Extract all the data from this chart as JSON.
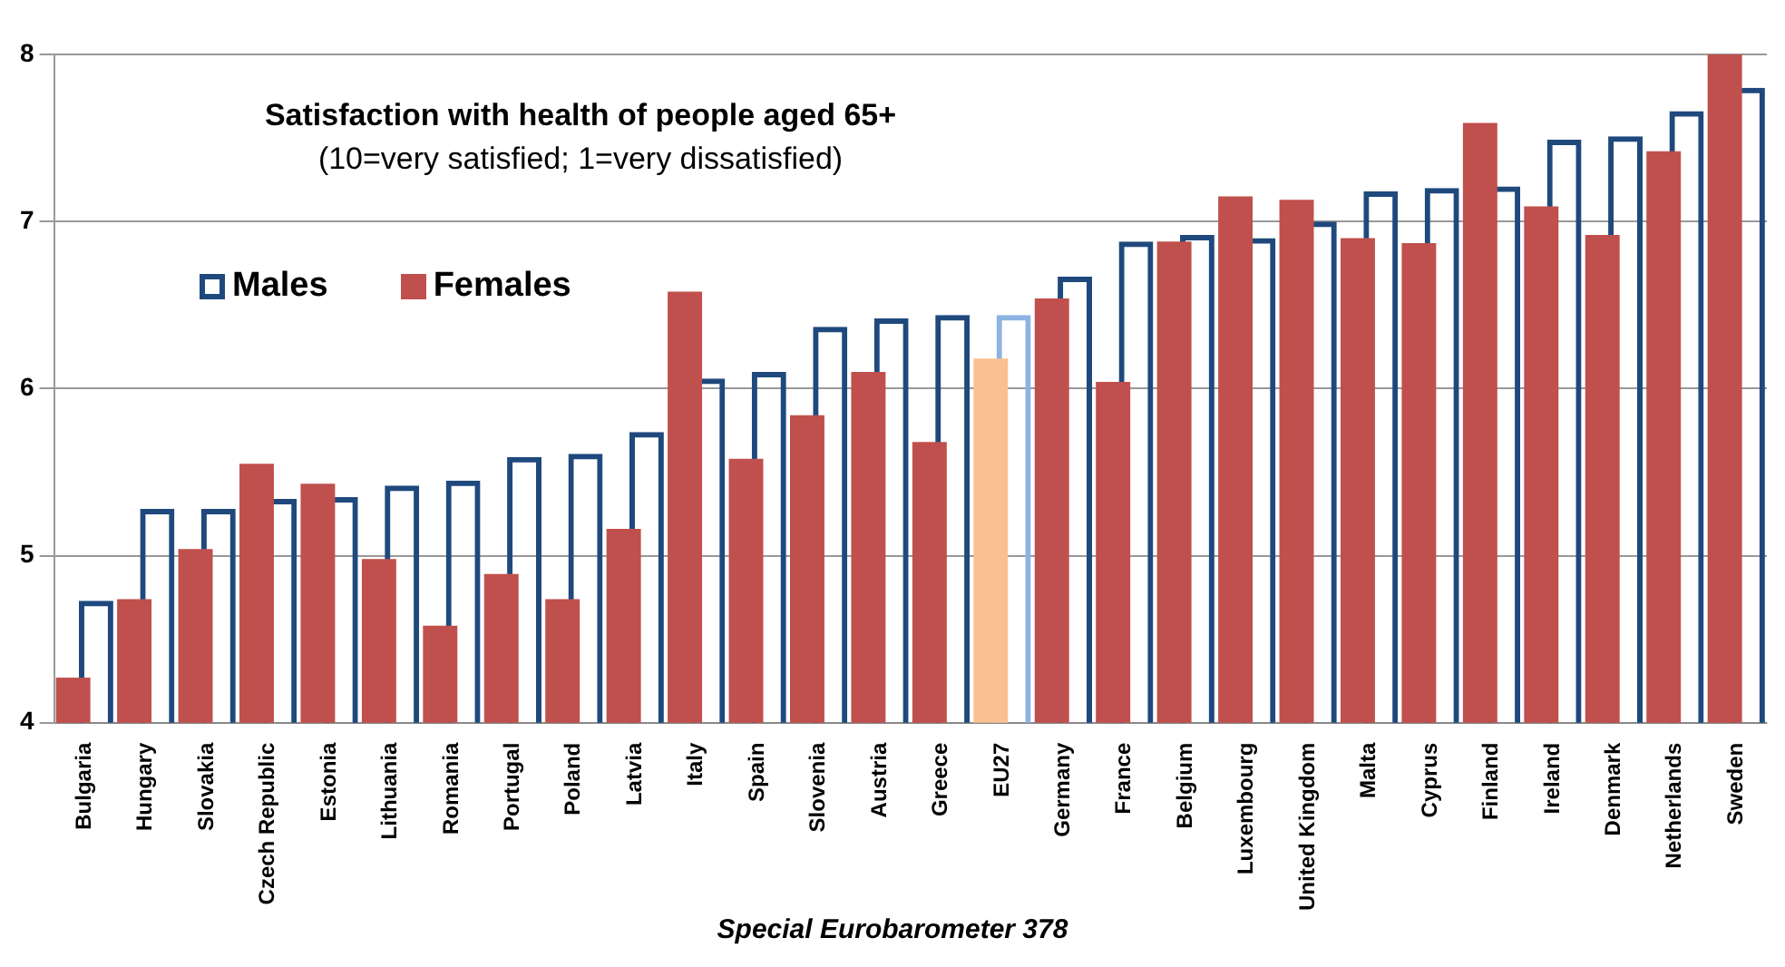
{
  "chart_data": {
    "type": "bar",
    "title": "Satisfaction with health of people aged 65+",
    "subtitle": "(10=very satisfied; 1=very dissatisfied)",
    "categories": [
      "Bulgaria",
      "Hungary",
      "Slovakia",
      "Czech Republic",
      "Estonia",
      "Lithuania",
      "Romania",
      "Portugal",
      "Poland",
      "Latvia",
      "Italy",
      "Spain",
      "Slovenia",
      "Austria",
      "Greece",
      "EU27",
      "Germany",
      "France",
      "Belgium",
      "Luxembourg",
      "United Kingdom",
      "Malta",
      "Cyprus",
      "Finland",
      "Ireland",
      "Denmark",
      "Netherlands",
      "Sweden"
    ],
    "series": [
      {
        "name": "Males",
        "color": "#1f497d",
        "colors": [
          "#1f497d",
          "#1f497d",
          "#1f497d",
          "#1f497d",
          "#1f497d",
          "#1f497d",
          "#1f497d",
          "#1f497d",
          "#1f497d",
          "#1f497d",
          "#1f497d",
          "#1f497d",
          "#1f497d",
          "#1f497d",
          "#1f497d",
          "#8db3e2",
          "#1f497d",
          "#1f497d",
          "#1f497d",
          "#1f497d",
          "#1f497d",
          "#1f497d",
          "#1f497d",
          "#1f497d",
          "#1f497d",
          "#1f497d",
          "#1f497d",
          "#1f497d"
        ],
        "values": [
          4.73,
          5.28,
          5.28,
          5.34,
          5.35,
          5.42,
          5.45,
          5.59,
          5.61,
          5.74,
          6.06,
          6.1,
          6.37,
          6.42,
          6.44,
          6.44,
          6.67,
          6.88,
          6.92,
          6.9,
          7.0,
          7.18,
          7.2,
          7.21,
          7.49,
          7.51,
          7.66,
          7.8
        ]
      },
      {
        "name": "Females",
        "color": "#c0504d",
        "colors": [
          "#c0504d",
          "#c0504d",
          "#c0504d",
          "#c0504d",
          "#c0504d",
          "#c0504d",
          "#c0504d",
          "#c0504d",
          "#c0504d",
          "#c0504d",
          "#c0504d",
          "#c0504d",
          "#c0504d",
          "#c0504d",
          "#c0504d",
          "#fac090",
          "#c0504d",
          "#c0504d",
          "#c0504d",
          "#c0504d",
          "#c0504d",
          "#c0504d",
          "#c0504d",
          "#c0504d",
          "#c0504d",
          "#c0504d",
          "#c0504d",
          "#c0504d"
        ],
        "values": [
          4.27,
          4.74,
          5.04,
          5.55,
          5.43,
          4.98,
          4.58,
          4.89,
          4.74,
          5.16,
          6.58,
          5.58,
          5.84,
          6.1,
          5.68,
          6.18,
          6.54,
          6.04,
          6.88,
          7.15,
          7.13,
          6.9,
          6.87,
          7.59,
          7.09,
          6.92,
          7.42,
          8.0
        ]
      }
    ],
    "ylim": [
      4,
      8
    ],
    "yticks": [
      4,
      5,
      6,
      7,
      8
    ],
    "grid": "y",
    "legend": "top left",
    "annotations": [
      "Special Eurobarometer 378"
    ]
  }
}
